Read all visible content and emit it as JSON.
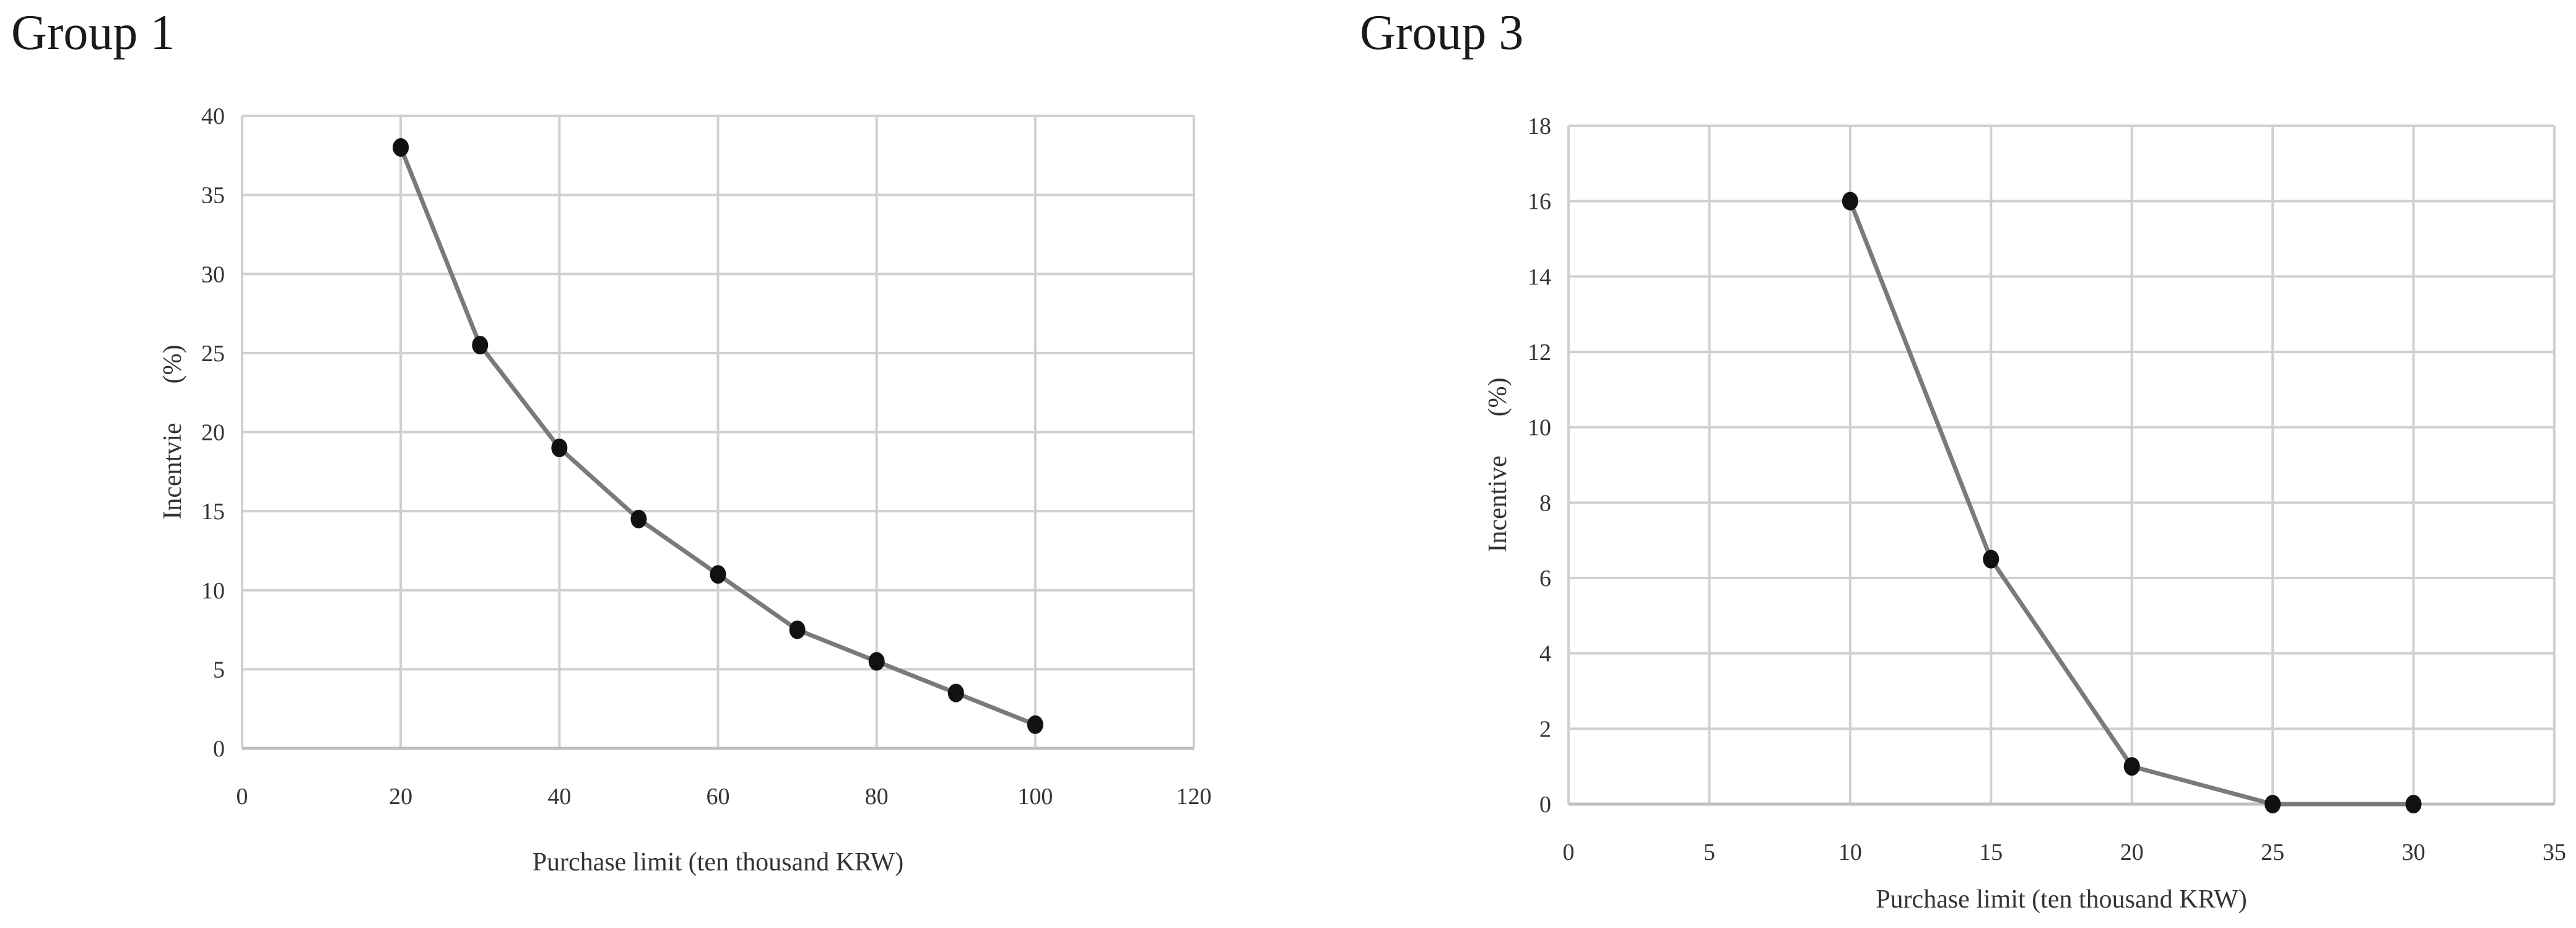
{
  "panels": [
    {
      "title": "Group 1"
    },
    {
      "title": "Group 3"
    }
  ],
  "chart_data": [
    {
      "type": "line",
      "title": "Group 1",
      "xlabel": "Purchase limit (ten thousand KRW)",
      "ylabel": "Incentvie      (%)",
      "xlim": [
        0,
        120
      ],
      "ylim": [
        0,
        40
      ],
      "xticks": [
        0,
        20,
        40,
        60,
        80,
        100,
        120
      ],
      "yticks": [
        0,
        5,
        10,
        15,
        20,
        25,
        30,
        35,
        40
      ],
      "grid": true,
      "legend": "none",
      "series": [
        {
          "x": [
            20,
            30,
            40,
            50,
            60,
            70,
            80,
            90,
            100
          ],
          "values": [
            38,
            25.5,
            19,
            14.5,
            11,
            7.5,
            5.5,
            3.5,
            1.5
          ],
          "color": "#7a7a7a",
          "marker_color": "#111111"
        }
      ]
    },
    {
      "type": "line",
      "title": "Group 3",
      "xlabel": "Purchase limit (ten thousand KRW)",
      "ylabel": "Incentive      (%)",
      "xlim": [
        0,
        35
      ],
      "ylim": [
        0,
        18
      ],
      "xticks": [
        0,
        5,
        10,
        15,
        20,
        25,
        30,
        35
      ],
      "yticks": [
        0,
        2,
        4,
        6,
        8,
        10,
        12,
        14,
        16,
        18
      ],
      "grid": true,
      "legend": "none",
      "series": [
        {
          "x": [
            10,
            15,
            20,
            25,
            30
          ],
          "values": [
            16,
            6.5,
            1,
            0,
            0
          ],
          "color": "#7a7a7a",
          "marker_color": "#111111"
        }
      ]
    }
  ]
}
